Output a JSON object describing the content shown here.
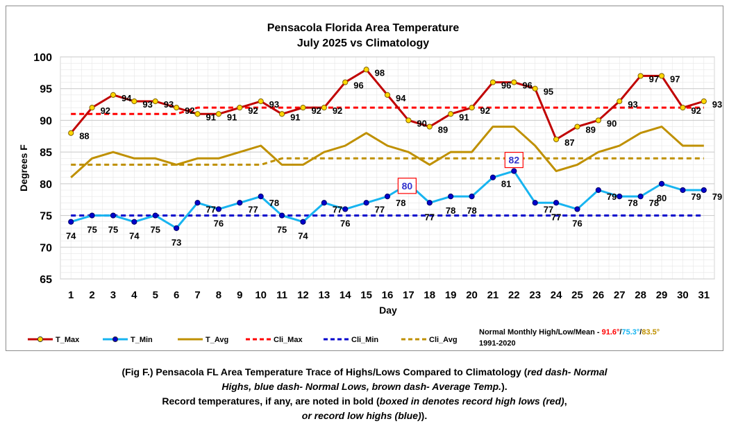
{
  "chart_data": {
    "type": "line",
    "title": "Pensacola Florida Area Temperature",
    "subtitle": "July 2025 vs Climatology",
    "xlabel": "Day",
    "ylabel": "Degrees F",
    "ylim": [
      65,
      100
    ],
    "yticks": [
      65,
      70,
      75,
      80,
      85,
      90,
      95,
      100
    ],
    "grid": true,
    "legend_position": "bottom",
    "x": [
      1,
      2,
      3,
      4,
      5,
      6,
      7,
      8,
      9,
      10,
      11,
      12,
      13,
      14,
      15,
      16,
      17,
      18,
      19,
      20,
      21,
      22,
      23,
      24,
      25,
      26,
      27,
      28,
      29,
      30,
      31
    ],
    "series": [
      {
        "name": "T_Max",
        "color": "#c00000",
        "marker_color": "#ffd700",
        "style": "solid-marker",
        "values": [
          88,
          92,
          94,
          93,
          93,
          92,
          91,
          91,
          92,
          93,
          91,
          92,
          92,
          96,
          98,
          94,
          90,
          89,
          91,
          92,
          96,
          96,
          95,
          87,
          89,
          90,
          93,
          97,
          97,
          92,
          93
        ],
        "labels": [
          "88",
          "92",
          "94",
          "93",
          "93",
          "92",
          "91",
          "91",
          "92",
          "93",
          "91",
          "92",
          "92",
          "96",
          "98",
          "94",
          "90",
          "89",
          "91",
          "92",
          "96",
          "96",
          "95",
          "87",
          "89",
          "90",
          "93",
          "97",
          "97",
          "92",
          "93"
        ]
      },
      {
        "name": "T_Min",
        "color": "#17b4f0",
        "marker_color": "#0000cc",
        "style": "solid-marker",
        "values": [
          74,
          75,
          75,
          74,
          75,
          73,
          77,
          76,
          77,
          78,
          75,
          74,
          77,
          76,
          77,
          78,
          80,
          77,
          78,
          78,
          81,
          82,
          77,
          77,
          76,
          79,
          78,
          78,
          80,
          79,
          79
        ],
        "labels": [
          "74",
          "75",
          "75",
          "74",
          "75",
          "73",
          "77",
          "76",
          "77",
          "78",
          "75",
          "74",
          "77",
          "76",
          "77",
          "78",
          "80",
          "77",
          "78",
          "78",
          "81",
          "82",
          "77",
          "77",
          "76",
          "79",
          "78",
          "78",
          "80",
          "79",
          "79"
        ],
        "record_days": [
          17,
          22
        ]
      },
      {
        "name": "T_Avg",
        "color": "#bf9000",
        "style": "solid",
        "values": [
          81,
          84,
          85,
          84,
          84,
          83,
          84,
          84,
          85,
          86,
          83,
          83,
          85,
          86,
          88,
          86,
          85,
          83,
          85,
          85,
          89,
          89,
          86,
          82,
          83,
          85,
          86,
          88,
          89,
          86,
          86
        ]
      },
      {
        "name": "Cli_Max",
        "color": "#ff0000",
        "style": "dashed",
        "values": [
          91,
          91,
          91,
          91,
          91,
          91,
          92,
          92,
          92,
          92,
          92,
          92,
          92,
          92,
          92,
          92,
          92,
          92,
          92,
          92,
          92,
          92,
          92,
          92,
          92,
          92,
          92,
          92,
          92,
          92,
          92
        ]
      },
      {
        "name": "Cli_Min",
        "color": "#0000cc",
        "style": "dashed",
        "values": [
          75,
          75,
          75,
          75,
          75,
          75,
          75,
          75,
          75,
          75,
          75,
          75,
          75,
          75,
          75,
          75,
          75,
          75,
          75,
          75,
          75,
          75,
          75,
          75,
          75,
          75,
          75,
          75,
          75,
          75,
          75
        ]
      },
      {
        "name": "Cli_Avg",
        "color": "#bf9000",
        "style": "dashed",
        "values": [
          83,
          83,
          83,
          83,
          83,
          83,
          83,
          83,
          83,
          83,
          84,
          84,
          84,
          84,
          84,
          84,
          84,
          84,
          84,
          84,
          84,
          84,
          84,
          84,
          84,
          84,
          84,
          84,
          84,
          84,
          84
        ]
      }
    ],
    "normals_note": {
      "prefix": "Normal Monthly High/Low/Mean - ",
      "high": "91.6°",
      "high_color": "#ff0000",
      "low": "75.3°",
      "low_color": "#17b4f0",
      "mean": "83.5°",
      "mean_color": "#bf9000",
      "sep": "/",
      "period": "1991-2020"
    }
  },
  "caption": {
    "line1_a": "(Fig F.) Pensacola FL Area Temperature Trace of Highs/Lows Compared to Climatology (",
    "line1_b": "red dash- Normal",
    "line2_a": "Highs, blue dash- Normal Lows, brown dash- Average Temp.",
    "line2_b": ").",
    "line3_a": "Record temperatures, if any, are noted in bold (",
    "line3_b": "boxed in denotes record high lows (red)",
    "line3_c": ",",
    "line4_a": "or record low highs (blue)",
    "line4_b": ")."
  }
}
